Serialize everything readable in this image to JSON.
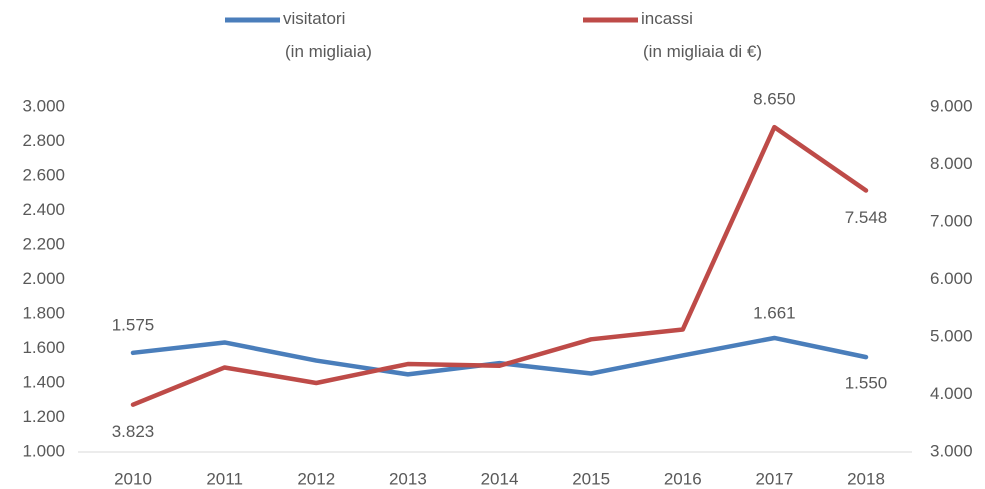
{
  "chart_data": {
    "type": "line",
    "categories": [
      "2010",
      "2011",
      "2012",
      "2013",
      "2014",
      "2015",
      "2016",
      "2017",
      "2018"
    ],
    "series": [
      {
        "name": "visitatori\n(in migliaia)",
        "color": "#4a7ebb",
        "axis": "y",
        "values": [
          1575,
          1635,
          1530,
          1450,
          1515,
          1455,
          1560,
          1661,
          1550
        ],
        "value_labels": [
          "1.575",
          null,
          null,
          null,
          null,
          null,
          null,
          "1.661",
          "1.550"
        ]
      },
      {
        "name": "incassi\n(in migliaia di €)",
        "color": "#be4b48",
        "axis": "y2",
        "values": [
          3823,
          4470,
          4200,
          4530,
          4500,
          4960,
          5130,
          8650,
          7548
        ],
        "value_labels": [
          "3.823",
          null,
          null,
          null,
          null,
          null,
          null,
          "8.650",
          "7.548"
        ]
      }
    ],
    "ylim": [
      1000,
      3000
    ],
    "yticks": [
      {
        "value": 1000,
        "label": "1.000"
      },
      {
        "value": 1200,
        "label": "1.200"
      },
      {
        "value": 1400,
        "label": "1.400"
      },
      {
        "value": 1600,
        "label": "1.600"
      },
      {
        "value": 1800,
        "label": "1.800"
      },
      {
        "value": 2000,
        "label": "2.000"
      },
      {
        "value": 2200,
        "label": "2.200"
      },
      {
        "value": 2400,
        "label": "2.400"
      },
      {
        "value": 2600,
        "label": "2.600"
      },
      {
        "value": 2800,
        "label": "2.800"
      },
      {
        "value": 3000,
        "label": "3.000"
      }
    ],
    "y2lim": [
      3000,
      9000
    ],
    "y2ticks": [
      {
        "value": 3000,
        "label": "3.000"
      },
      {
        "value": 4000,
        "label": "4.000"
      },
      {
        "value": 5000,
        "label": "5.000"
      },
      {
        "value": 6000,
        "label": "6.000"
      },
      {
        "value": 7000,
        "label": "7.000"
      },
      {
        "value": 8000,
        "label": "8.000"
      },
      {
        "value": 9000,
        "label": "9.000"
      }
    ],
    "legend": "top"
  }
}
